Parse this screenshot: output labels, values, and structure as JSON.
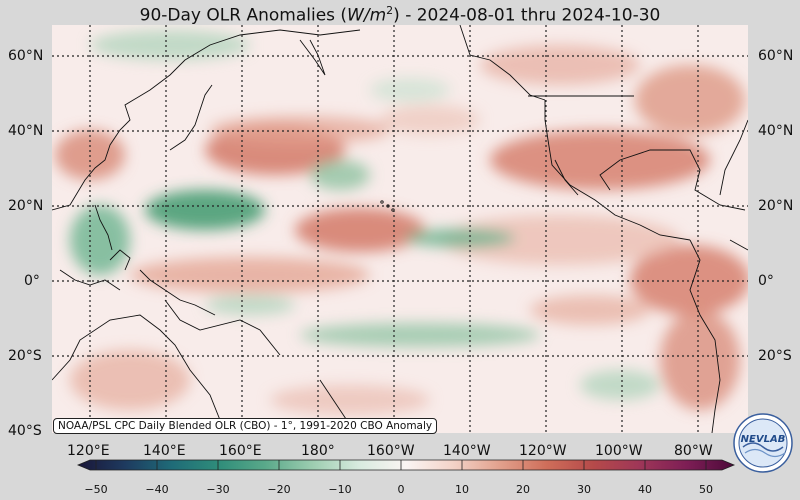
{
  "header": {
    "title_prefix": "90-Day OLR Anomalies (",
    "title_unit_base": "W/m",
    "title_unit_exp": "2",
    "title_suffix": ") - 2024-08-01 thru 2024-10-30"
  },
  "map": {
    "lat_labels": [
      "60°N",
      "40°N",
      "20°N",
      "0°",
      "20°S",
      "40°S"
    ],
    "lon_labels": [
      "120°E",
      "140°E",
      "160°E",
      "180°",
      "160°W",
      "140°W",
      "120°W",
      "100°W",
      "80°W"
    ],
    "source_note": "NOAA/PSL CPC Daily Blended OLR (CBO) - 1°, 1991-2020 CBO Anomaly",
    "projection_note": "Equirectangular, 110°E–70°W, 40°S–65°N",
    "colors": {
      "ocean_neutral": "#f8ecea",
      "positive_anomaly": "#d47a68",
      "strong_positive": "#c25a4a",
      "negative_anomaly": "#8ec3a1",
      "strong_negative": "#3e9a6e",
      "gridline": "#222222",
      "coastline": "#111111"
    }
  },
  "colorbar": {
    "tick_labels": [
      "−50",
      "−40",
      "−30",
      "−20",
      "−10",
      "0",
      "10",
      "20",
      "30",
      "40",
      "50"
    ],
    "min": -50,
    "max": 50,
    "stops": [
      "#1a1638",
      "#1e3a5f",
      "#1f6b78",
      "#2f8d7a",
      "#5aa98a",
      "#9ccdb0",
      "#d8ebdf",
      "#fbf5f3",
      "#f3d3c8",
      "#e2a18d",
      "#cf6e5a",
      "#b54a4a",
      "#9e3658",
      "#7d1e55",
      "#4d0a3a"
    ]
  },
  "logo": {
    "text": "NEVLAB",
    "icon": "noaa-psl-logo-icon"
  }
}
